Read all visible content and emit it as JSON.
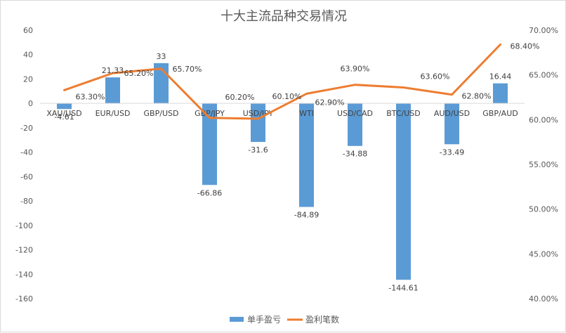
{
  "chart_data": {
    "type": "bar",
    "title": "十大主流品种交易情况",
    "categories": [
      "XAU/USD",
      "EUR/USD",
      "GBP/USD",
      "GBP/JPY",
      "USD/JPY",
      "WTI",
      "USD/CAD",
      "BTC/USD",
      "AUD/USD",
      "GBP/AUD"
    ],
    "series": [
      {
        "name": "单手盈亏",
        "type": "bar",
        "axis": "left",
        "color": "#5b9bd5",
        "values": [
          -4.61,
          21.33,
          33,
          -66.86,
          -31.6,
          -84.89,
          -34.88,
          -144.61,
          -33.49,
          16.44
        ],
        "labels": [
          "-4.61",
          "21.33",
          "33",
          "-66.86",
          "-31.6",
          "-84.89",
          "-34.88",
          "-144.61",
          "-33.49",
          "16.44"
        ]
      },
      {
        "name": "盈利笔数",
        "type": "line",
        "axis": "right",
        "color": "#ed7d31",
        "values": [
          63.3,
          65.2,
          65.7,
          60.2,
          60.1,
          62.9,
          63.9,
          63.6,
          62.8,
          68.4
        ],
        "labels": [
          "63.30%",
          "65.20%",
          "65.70%",
          "60.20%",
          "60.10%",
          "62.90%",
          "63.90%",
          "63.60%",
          "62.80%",
          "68.40%"
        ]
      }
    ],
    "y_left": {
      "ylim": [
        -160,
        60
      ],
      "ticks": [
        60,
        40,
        20,
        0,
        -20,
        -40,
        -60,
        -80,
        -100,
        -120,
        -140,
        -160
      ]
    },
    "y_right": {
      "ylim": [
        40,
        70
      ],
      "ticks": [
        70,
        65,
        60,
        55,
        50,
        45,
        40
      ],
      "tick_labels": [
        "70.00%",
        "65.00%",
        "60.00%",
        "55.00%",
        "50.00%",
        "45.00%",
        "40.00%"
      ]
    },
    "grid": false,
    "legend": "bottom"
  }
}
